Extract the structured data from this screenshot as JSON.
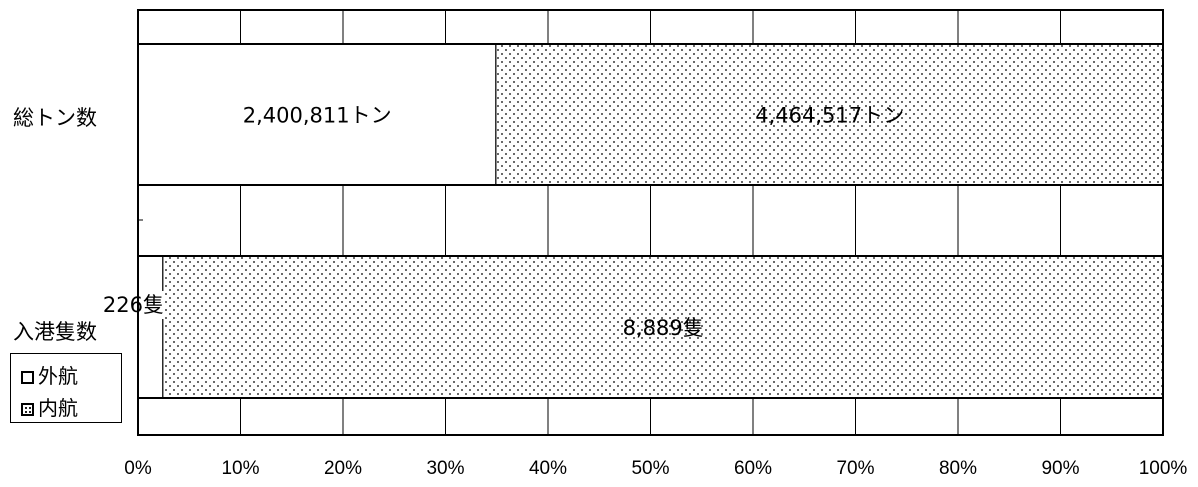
{
  "chart_data": {
    "type": "bar",
    "orientation": "horizontal",
    "stacked": "percent",
    "categories": [
      "総トン数",
      "入港隻数"
    ],
    "series": [
      {
        "name": "外航",
        "values": [
          2400811,
          226
        ],
        "labels": [
          "2,400,811トン",
          "226隻"
        ],
        "fill": "white"
      },
      {
        "name": "内航",
        "values": [
          4464517,
          8889
        ],
        "labels": [
          "4,464,517トン",
          "8,889隻"
        ],
        "fill": "dotted"
      }
    ],
    "x_ticks": [
      "0%",
      "10%",
      "20%",
      "30%",
      "40%",
      "50%",
      "60%",
      "70%",
      "80%",
      "90%",
      "100%"
    ],
    "xlim": [
      0,
      100
    ],
    "grid": true,
    "legend": {
      "position": "bottom-left",
      "items": [
        {
          "label": "外航",
          "fill": "white"
        },
        {
          "label": "内航",
          "fill": "dotted"
        }
      ]
    },
    "title": "",
    "xlabel": "",
    "ylabel": ""
  },
  "colors": {
    "line": "#000000",
    "background": "#ffffff",
    "dot": "#000000"
  }
}
